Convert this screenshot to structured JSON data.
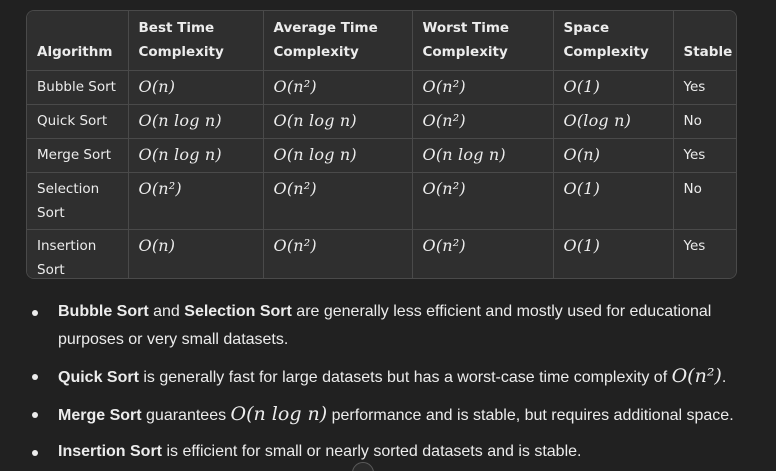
{
  "table": {
    "headers": [
      {
        "line1": "",
        "line2": "Algorithm"
      },
      {
        "line1": "Best Time",
        "line2": "Complexity"
      },
      {
        "line1": "Average Time",
        "line2": "Complexity"
      },
      {
        "line1": "Worst Time",
        "line2": "Complexity"
      },
      {
        "line1": "Space",
        "line2": "Complexity"
      },
      {
        "line1": "",
        "line2": "Stable"
      }
    ],
    "rows": [
      {
        "algorithm": "Bubble Sort",
        "best": "O(n)",
        "average": "O(n²)",
        "worst": "O(n²)",
        "space": "O(1)",
        "stable": "Yes"
      },
      {
        "algorithm": "Quick Sort",
        "best": "O(n log n)",
        "average": "O(n log n)",
        "worst": "O(n²)",
        "space": "O(log n)",
        "stable": "No"
      },
      {
        "algorithm": "Merge Sort",
        "best": "O(n log n)",
        "average": "O(n log n)",
        "worst": "O(n log n)",
        "space": "O(n)",
        "stable": "Yes"
      },
      {
        "algorithm": "Selection Sort",
        "best": "O(n²)",
        "average": "O(n²)",
        "worst": "O(n²)",
        "space": "O(1)",
        "stable": "No"
      },
      {
        "algorithm": "Insertion Sort",
        "best": "O(n)",
        "average": "O(n²)",
        "worst": "O(n²)",
        "space": "O(1)",
        "stable": "Yes"
      }
    ]
  },
  "notes": [
    {
      "bold1": "Bubble Sort",
      "mid1": " and ",
      "bold2": "Selection Sort",
      "rest": " are generally less efficient and mostly used for educational purposes or very small datasets."
    },
    {
      "bold1": "Quick Sort",
      "rest": " is generally fast for large datasets but has a worst-case time complexity of ",
      "math": "O(n²)",
      "tail": "."
    },
    {
      "bold1": "Merge Sort",
      "rest": " guarantees ",
      "math": "O(n log n)",
      "tail": " performance and is stable, but requires additional space."
    },
    {
      "bold1": "Insertion Sort",
      "rest": " is efficient for small or nearly sorted datasets and is stable."
    }
  ],
  "colors": {
    "page_bg": "#212121",
    "table_bg": "#2f2f2f",
    "border": "#4a4a4a",
    "text": "#ececec"
  }
}
